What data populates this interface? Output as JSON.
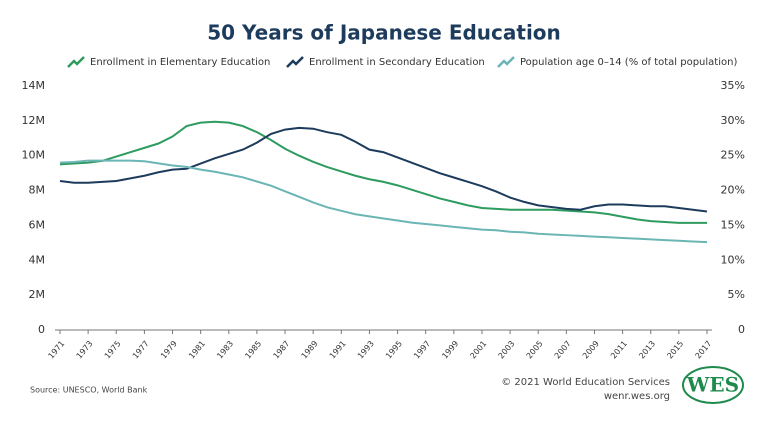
{
  "chart_data": {
    "type": "line",
    "title": "50 Years of Japanese Education",
    "source": "Source: UNESCO, World Bank",
    "copyright": "© 2021 World Education Services",
    "url": "wenr.wes.org",
    "logo_text": "WES",
    "x": [
      1971,
      1972,
      1973,
      1974,
      1975,
      1976,
      1977,
      1978,
      1979,
      1980,
      1981,
      1982,
      1983,
      1984,
      1985,
      1986,
      1987,
      1988,
      1989,
      1990,
      1991,
      1992,
      1993,
      1994,
      1995,
      1996,
      1997,
      1998,
      1999,
      2000,
      2001,
      2002,
      2003,
      2004,
      2005,
      2006,
      2007,
      2008,
      2009,
      2010,
      2011,
      2012,
      2013,
      2014,
      2015,
      2016,
      2017
    ],
    "xlim": [
      1971,
      2017
    ],
    "xticks": [
      1971,
      1973,
      1975,
      1977,
      1979,
      1981,
      1983,
      1985,
      1987,
      1989,
      1991,
      1993,
      1995,
      1997,
      1999,
      2001,
      2003,
      2005,
      2007,
      2009,
      2011,
      2013,
      2015,
      2017
    ],
    "ylim": [
      0,
      14000000
    ],
    "yticks": [
      0,
      {
        "value": 2000000,
        "label": "2M"
      },
      {
        "value": 4000000,
        "label": "4M"
      },
      {
        "value": 6000000,
        "label": "6M"
      },
      {
        "value": 8000000,
        "label": "8M"
      },
      {
        "value": 10000000,
        "label": "10M"
      },
      {
        "value": 12000000,
        "label": "12M"
      },
      {
        "value": 14000000,
        "label": "14M"
      }
    ],
    "y2lim": [
      0,
      35
    ],
    "y2ticks": [
      0,
      {
        "value": 5,
        "label": "5%"
      },
      {
        "value": 10,
        "label": "10%"
      },
      {
        "value": 15,
        "label": "15%"
      },
      {
        "value": 20,
        "label": "20%"
      },
      {
        "value": 25,
        "label": "25%"
      },
      {
        "value": 30,
        "label": "30%"
      },
      {
        "value": 35,
        "label": "35%"
      }
    ],
    "series": [
      {
        "name": "Enrollment in Elementary Education",
        "color": "#2e9b5f",
        "values": [
          9500000,
          9550000,
          9600000,
          9700000,
          9950000,
          10200000,
          10450000,
          10700000,
          11100000,
          11700000,
          11900000,
          11950000,
          11900000,
          11700000,
          11350000,
          10900000,
          10400000,
          10000000,
          9650000,
          9350000,
          9100000,
          8850000,
          8650000,
          8500000,
          8300000,
          8050000,
          7800000,
          7550000,
          7350000,
          7150000,
          7000000,
          6950000,
          6900000,
          6900000,
          6900000,
          6900000,
          6850000,
          6800000,
          6750000,
          6650000,
          6500000,
          6350000,
          6250000,
          6200000,
          6150000,
          6150000,
          6150000
        ]
      },
      {
        "name": "Enrollment in Secondary Education",
        "color": "#1d3b5c",
        "values": [
          8550000,
          8450000,
          8450000,
          8500000,
          8550000,
          8700000,
          8850000,
          9050000,
          9200000,
          9250000,
          9550000,
          9850000,
          10100000,
          10350000,
          10750000,
          11250000,
          11500000,
          11600000,
          11550000,
          11350000,
          11200000,
          10800000,
          10350000,
          10200000,
          9900000,
          9600000,
          9300000,
          9000000,
          8750000,
          8500000,
          8250000,
          7950000,
          7600000,
          7350000,
          7150000,
          7050000,
          6950000,
          6900000,
          7100000,
          7200000,
          7200000,
          7150000,
          7100000,
          7100000,
          7000000,
          6900000,
          6800000
        ]
      },
      {
        "name": "Population age 0–14 (% of total population)",
        "color": "#6bb5b5",
        "axis": "y2",
        "values": [
          24.0,
          24.1,
          24.3,
          24.3,
          24.3,
          24.3,
          24.2,
          23.9,
          23.6,
          23.4,
          23.0,
          22.7,
          22.3,
          21.9,
          21.3,
          20.7,
          19.9,
          19.1,
          18.3,
          17.6,
          17.1,
          16.6,
          16.3,
          16.0,
          15.7,
          15.4,
          15.2,
          15.0,
          14.8,
          14.6,
          14.4,
          14.3,
          14.1,
          14.0,
          13.8,
          13.7,
          13.6,
          13.5,
          13.4,
          13.3,
          13.2,
          13.1,
          13.0,
          12.9,
          12.8,
          12.7,
          12.6
        ]
      }
    ]
  }
}
